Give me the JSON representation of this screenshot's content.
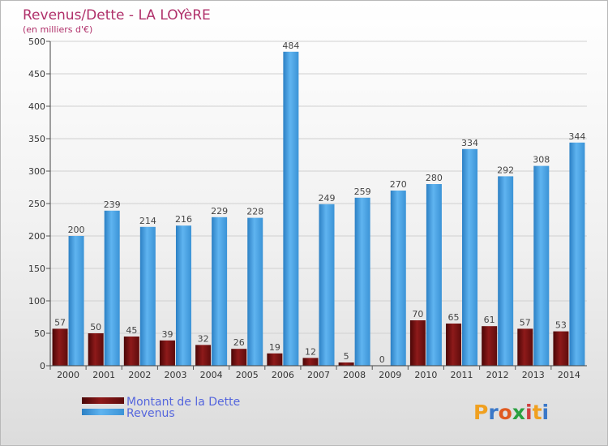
{
  "chart_data": {
    "type": "bar",
    "title": "Revenus/Dette - LA LOYèRE",
    "subtitle": "(en milliers d'€)",
    "categories": [
      "2000",
      "2001",
      "2002",
      "2003",
      "2004",
      "2005",
      "2006",
      "2007",
      "2008",
      "2009",
      "2010",
      "2011",
      "2012",
      "2013",
      "2014"
    ],
    "series": [
      {
        "name": "Montant de la Dette",
        "color": "#7a1010",
        "values": [
          57,
          50,
          45,
          39,
          32,
          26,
          19,
          12,
          5,
          0,
          70,
          65,
          61,
          57,
          53
        ]
      },
      {
        "name": "Revenus",
        "color": "#4aa3e6",
        "values": [
          200,
          239,
          214,
          216,
          229,
          228,
          484,
          249,
          259,
          270,
          280,
          334,
          292,
          308,
          344
        ]
      }
    ],
    "ylim": [
      0,
      500
    ],
    "yticks": [
      0,
      50,
      100,
      150,
      200,
      250,
      300,
      350,
      400,
      450,
      500
    ],
    "grid": true,
    "legend": "bottom-left",
    "logo": "Proxiti"
  }
}
